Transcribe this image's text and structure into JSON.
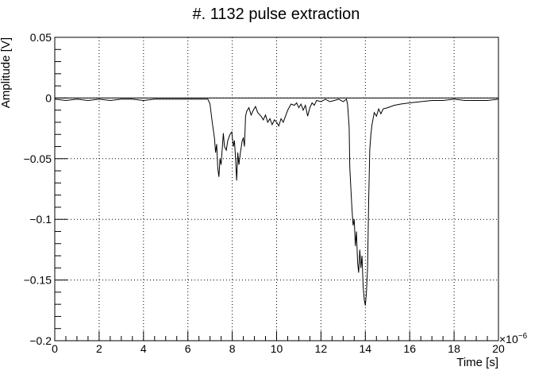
{
  "chart_data": {
    "type": "line",
    "title": "#. 1132 pulse extraction",
    "xlabel": "Time [s]",
    "ylabel": "Amplitude [V]",
    "x_multiplier_label": "×10",
    "x_multiplier_exponent": "−6",
    "xlim": [
      0,
      20
    ],
    "ylim": [
      -0.2,
      0.05
    ],
    "x_ticks": [
      0,
      2,
      4,
      6,
      8,
      10,
      12,
      14,
      16,
      18,
      20
    ],
    "x_tick_labels": [
      "0",
      "2",
      "4",
      "6",
      "8",
      "10",
      "12",
      "14",
      "16",
      "18",
      "20"
    ],
    "y_ticks": [
      -0.2,
      -0.15,
      -0.1,
      -0.05,
      0,
      0.05
    ],
    "y_tick_labels": [
      "−0.2",
      "−0.15",
      "−0.1",
      "−0.05",
      "0",
      "0.05"
    ],
    "grid": true,
    "reference_line_y": 0,
    "line_color": "#000000",
    "series": [
      {
        "points": [
          [
            0,
            -0.001
          ],
          [
            0.5,
            -0.002
          ],
          [
            1,
            -0.001
          ],
          [
            1.5,
            -0.002
          ],
          [
            2,
            -0.001
          ],
          [
            2.5,
            -0.002
          ],
          [
            3,
            -0.001
          ],
          [
            3.5,
            -0.001
          ],
          [
            4,
            -0.002
          ],
          [
            4.5,
            -0.001
          ],
          [
            5,
            -0.001
          ],
          [
            5.5,
            -0.001
          ],
          [
            6,
            -0.001
          ],
          [
            6.5,
            -0.001
          ],
          [
            6.9,
            -0.001
          ],
          [
            7.0,
            -0.005
          ],
          [
            7.1,
            -0.02
          ],
          [
            7.2,
            -0.033
          ],
          [
            7.25,
            -0.045
          ],
          [
            7.3,
            -0.038
          ],
          [
            7.35,
            -0.058
          ],
          [
            7.4,
            -0.065
          ],
          [
            7.45,
            -0.05
          ],
          [
            7.5,
            -0.055
          ],
          [
            7.6,
            -0.029
          ],
          [
            7.65,
            -0.04
          ],
          [
            7.73,
            -0.043
          ],
          [
            7.8,
            -0.035
          ],
          [
            7.9,
            -0.03
          ],
          [
            7.98,
            -0.028
          ],
          [
            8.05,
            -0.04
          ],
          [
            8.1,
            -0.035
          ],
          [
            8.15,
            -0.05
          ],
          [
            8.2,
            -0.068
          ],
          [
            8.25,
            -0.045
          ],
          [
            8.3,
            -0.055
          ],
          [
            8.37,
            -0.045
          ],
          [
            8.45,
            -0.035
          ],
          [
            8.5,
            -0.033
          ],
          [
            8.55,
            -0.04
          ],
          [
            8.6,
            -0.015
          ],
          [
            8.65,
            -0.011
          ],
          [
            8.75,
            -0.008
          ],
          [
            8.85,
            -0.014
          ],
          [
            8.95,
            -0.01
          ],
          [
            9.05,
            -0.007
          ],
          [
            9.15,
            -0.012
          ],
          [
            9.3,
            -0.015
          ],
          [
            9.4,
            -0.018
          ],
          [
            9.5,
            -0.014
          ],
          [
            9.6,
            -0.02
          ],
          [
            9.7,
            -0.017
          ],
          [
            9.8,
            -0.022
          ],
          [
            9.9,
            -0.018
          ],
          [
            10.0,
            -0.02
          ],
          [
            10.1,
            -0.023
          ],
          [
            10.2,
            -0.017
          ],
          [
            10.3,
            -0.02
          ],
          [
            10.4,
            -0.015
          ],
          [
            10.5,
            -0.01
          ],
          [
            10.65,
            -0.005
          ],
          [
            10.8,
            -0.006
          ],
          [
            10.9,
            -0.004
          ],
          [
            11.0,
            -0.008
          ],
          [
            11.1,
            -0.005
          ],
          [
            11.2,
            -0.01
          ],
          [
            11.3,
            -0.006
          ],
          [
            11.4,
            -0.015
          ],
          [
            11.5,
            -0.008
          ],
          [
            11.6,
            -0.004
          ],
          [
            11.7,
            -0.006
          ],
          [
            11.8,
            -0.002
          ],
          [
            12.0,
            -0.003
          ],
          [
            12.2,
            -0.001
          ],
          [
            12.4,
            -0.003
          ],
          [
            12.6,
            -0.002
          ],
          [
            12.8,
            -0.001
          ],
          [
            13.0,
            -0.003
          ],
          [
            13.15,
            -0.001
          ],
          [
            13.2,
            -0.005
          ],
          [
            13.27,
            -0.024
          ],
          [
            13.3,
            -0.057
          ],
          [
            13.35,
            -0.075
          ],
          [
            13.4,
            -0.092
          ],
          [
            13.45,
            -0.105
          ],
          [
            13.5,
            -0.1
          ],
          [
            13.55,
            -0.122
          ],
          [
            13.6,
            -0.11
          ],
          [
            13.65,
            -0.135
          ],
          [
            13.7,
            -0.144
          ],
          [
            13.75,
            -0.125
          ],
          [
            13.8,
            -0.14
          ],
          [
            13.85,
            -0.13
          ],
          [
            13.9,
            -0.155
          ],
          [
            13.95,
            -0.166
          ],
          [
            14.0,
            -0.171
          ],
          [
            14.05,
            -0.16
          ],
          [
            14.1,
            -0.14
          ],
          [
            14.15,
            -0.085
          ],
          [
            14.2,
            -0.042
          ],
          [
            14.25,
            -0.03
          ],
          [
            14.3,
            -0.022
          ],
          [
            14.4,
            -0.012
          ],
          [
            14.5,
            -0.015
          ],
          [
            14.6,
            -0.009
          ],
          [
            14.7,
            -0.013
          ],
          [
            14.8,
            -0.009
          ],
          [
            15.0,
            -0.008
          ],
          [
            15.3,
            -0.006
          ],
          [
            15.6,
            -0.005
          ],
          [
            16,
            -0.004
          ],
          [
            16.5,
            -0.003
          ],
          [
            17,
            -0.002
          ],
          [
            17.5,
            -0.002
          ],
          [
            18,
            -0.001
          ],
          [
            18.5,
            -0.002
          ],
          [
            19,
            -0.002
          ],
          [
            19.5,
            -0.002
          ],
          [
            20,
            -0.001
          ]
        ]
      }
    ]
  }
}
